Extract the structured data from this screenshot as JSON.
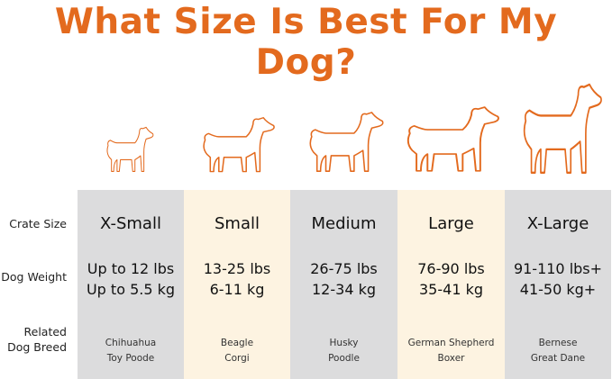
{
  "title": "What Size Is Best For My Dog?",
  "accent_color": "#E36A1E",
  "row_labels": {
    "crate_size": "Crate Size",
    "dog_weight": "Dog Weight",
    "breed_line1": "Related",
    "breed_line2": "Dog Breed"
  },
  "columns": [
    {
      "size": "X-Small",
      "lbs": "Up to 12 lbs",
      "kg": "Up to 5.5 kg",
      "breed1": "Chihuahua",
      "breed2": "Toy Poode",
      "icon": "chihuahua-icon"
    },
    {
      "size": "Small",
      "lbs": "13-25 lbs",
      "kg": "6-11 kg",
      "breed1": "Beagle",
      "breed2": "Corgi",
      "icon": "beagle-icon"
    },
    {
      "size": "Medium",
      "lbs": "26-75 lbs",
      "kg": "12-34 kg",
      "breed1": "Husky",
      "breed2": "Poodle",
      "icon": "husky-icon"
    },
    {
      "size": "Large",
      "lbs": "76-90 lbs",
      "kg": "35-41 kg",
      "breed1": "German Shepherd",
      "breed2": "Boxer",
      "icon": "retriever-icon"
    },
    {
      "size": "X-Large",
      "lbs": "91-110 lbs+",
      "kg": "41-50 kg+",
      "breed1": "Bernese",
      "breed2": "Great Dane",
      "icon": "great-dane-icon"
    }
  ]
}
